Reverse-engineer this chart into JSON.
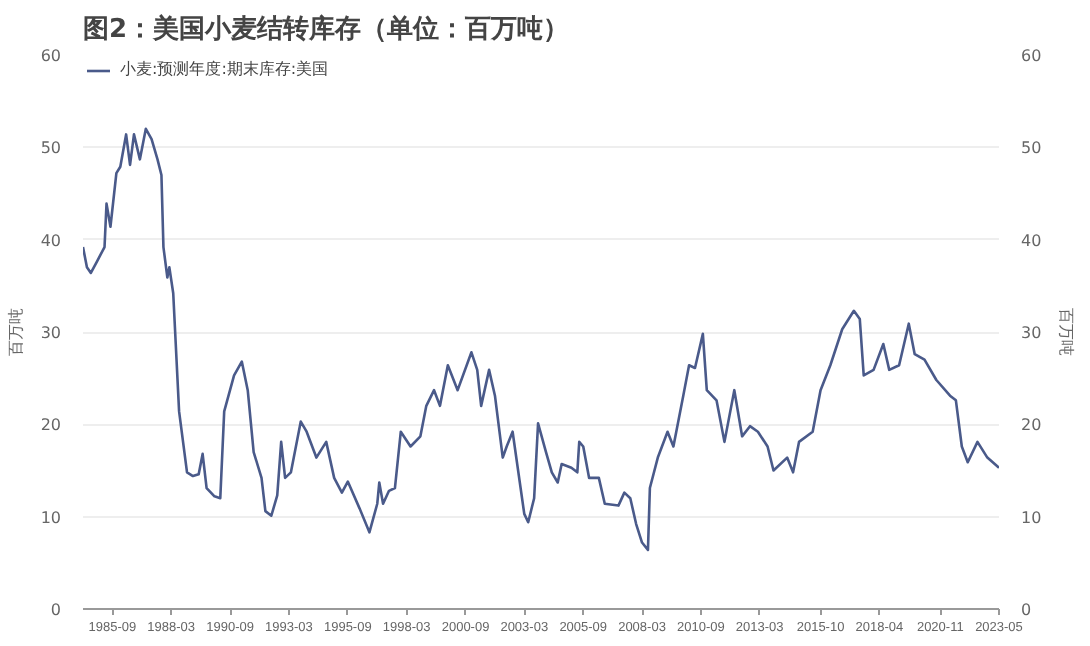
{
  "chart_data": {
    "type": "line",
    "title": "图2：美国小麦结转库存（单位：百万吨）",
    "ylabel": "百万吨",
    "y2label": "百万吨",
    "x": [
      "1984-06",
      "1984-08",
      "1984-10",
      "1985-01",
      "1985-05",
      "1985-06",
      "1985-08",
      "1985-11",
      "1986-01",
      "1986-04",
      "1986-06",
      "1986-08",
      "1986-11",
      "1987-02",
      "1987-05",
      "1987-08",
      "1987-10",
      "1987-11",
      "1988-01",
      "1988-02",
      "1988-04",
      "1988-07",
      "1988-11",
      "1989-02",
      "1989-05",
      "1989-07",
      "1989-09",
      "1990-01",
      "1990-04",
      "1990-06",
      "1990-11",
      "1991-03",
      "1991-06",
      "1991-09",
      "1992-01",
      "1992-03",
      "1992-06",
      "1992-09",
      "1992-11",
      "1993-01",
      "1993-04",
      "1993-09",
      "1993-12",
      "1994-05",
      "1994-10",
      "1995-02",
      "1995-06",
      "1995-09",
      "1996-03",
      "1996-08",
      "1996-12",
      "1997-01",
      "1997-03",
      "1997-06",
      "1997-09",
      "1997-12",
      "1998-05",
      "1998-10",
      "1999-01",
      "1999-05",
      "1999-08",
      "1999-12",
      "2000-05",
      "2000-12",
      "2001-03",
      "2001-05",
      "2001-09",
      "2001-12",
      "2002-04",
      "2002-06",
      "2002-09",
      "2003-03",
      "2003-05",
      "2003-08",
      "2003-10",
      "2004-02",
      "2004-05",
      "2004-08",
      "2004-10",
      "2005-03",
      "2005-06",
      "2005-07",
      "2005-09",
      "2005-12",
      "2006-05",
      "2006-08",
      "2007-03",
      "2007-06",
      "2007-09",
      "2007-12",
      "2008-03",
      "2008-06",
      "2008-07",
      "2008-11",
      "2009-04",
      "2009-07",
      "2009-12",
      "2010-03",
      "2010-06",
      "2010-10",
      "2010-12",
      "2011-05",
      "2011-09",
      "2012-02",
      "2012-06",
      "2012-10",
      "2013-02",
      "2013-07",
      "2013-10",
      "2014-05",
      "2014-08",
      "2014-11",
      "2015-06",
      "2015-10",
      "2016-03",
      "2016-09",
      "2017-03",
      "2017-06",
      "2017-08",
      "2018-01",
      "2018-06",
      "2018-09",
      "2019-02",
      "2019-07",
      "2019-10",
      "2020-03",
      "2020-09",
      "2021-04",
      "2021-07",
      "2021-10",
      "2022-01",
      "2022-06",
      "2022-11",
      "2023-05"
    ],
    "series": [
      {
        "name": "小麦:预测年度:期末库存:美国",
        "color": "#4a5a8a",
        "values": [
          39.2,
          37,
          36.4,
          37.6,
          39.2,
          43.9,
          41.4,
          47.2,
          47.9,
          51.4,
          48.1,
          51.4,
          48.7,
          52,
          50.9,
          48.7,
          47,
          39.2,
          35.9,
          37,
          34.2,
          21.4,
          14.8,
          14.4,
          14.6,
          16.8,
          13.1,
          12.2,
          12,
          21.4,
          25.3,
          26.8,
          23.7,
          17,
          14.2,
          10.6,
          10.1,
          12.3,
          18.1,
          14.2,
          14.8,
          20.3,
          19.2,
          16.4,
          18.1,
          14.2,
          12.6,
          13.8,
          10.9,
          8.3,
          11.4,
          13.7,
          11.4,
          12.8,
          13.1,
          19.2,
          17.6,
          18.7,
          22,
          23.7,
          22,
          26.4,
          23.7,
          27.8,
          25.9,
          22,
          25.9,
          23.1,
          16.4,
          17.6,
          19.2,
          10.3,
          9.4,
          12,
          20.1,
          17,
          14.8,
          13.7,
          15.7,
          15.3,
          14.8,
          18.1,
          17.6,
          14.2,
          14.2,
          11.4,
          11.2,
          12.6,
          12,
          9.2,
          7.2,
          6.4,
          13.1,
          16.4,
          19.2,
          17.6,
          23.1,
          26.4,
          26.1,
          29.8,
          23.7,
          22.6,
          18.1,
          23.7,
          18.7,
          19.8,
          19.2,
          17.6,
          15,
          16.4,
          14.8,
          18.1,
          19.2,
          23.7,
          26.4,
          30.3,
          32.3,
          31.4,
          25.3,
          25.9,
          28.7,
          25.9,
          26.4,
          30.9,
          27.6,
          27,
          24.8,
          23.1,
          22.6,
          17.6,
          15.9,
          18.1,
          16.4,
          15.3
        ]
      }
    ],
    "xlim": [
      "1984-06",
      "2023-05"
    ],
    "xticks": [
      "1985-09",
      "1988-03",
      "1990-09",
      "1993-03",
      "1995-09",
      "1998-03",
      "2000-09",
      "2003-03",
      "2005-09",
      "2008-03",
      "2010-09",
      "2013-03",
      "2015-10",
      "2018-04",
      "2020-11",
      "2023-05"
    ],
    "ylim": [
      0,
      60
    ],
    "yticks": [
      0,
      10,
      20,
      30,
      40,
      50,
      60
    ],
    "y2lim": [
      0,
      60
    ],
    "y2ticks": [
      0,
      10,
      20,
      30,
      40,
      50,
      60
    ],
    "grid": "y",
    "legend": "top left",
    "marker": "none",
    "line_style": "solid"
  }
}
